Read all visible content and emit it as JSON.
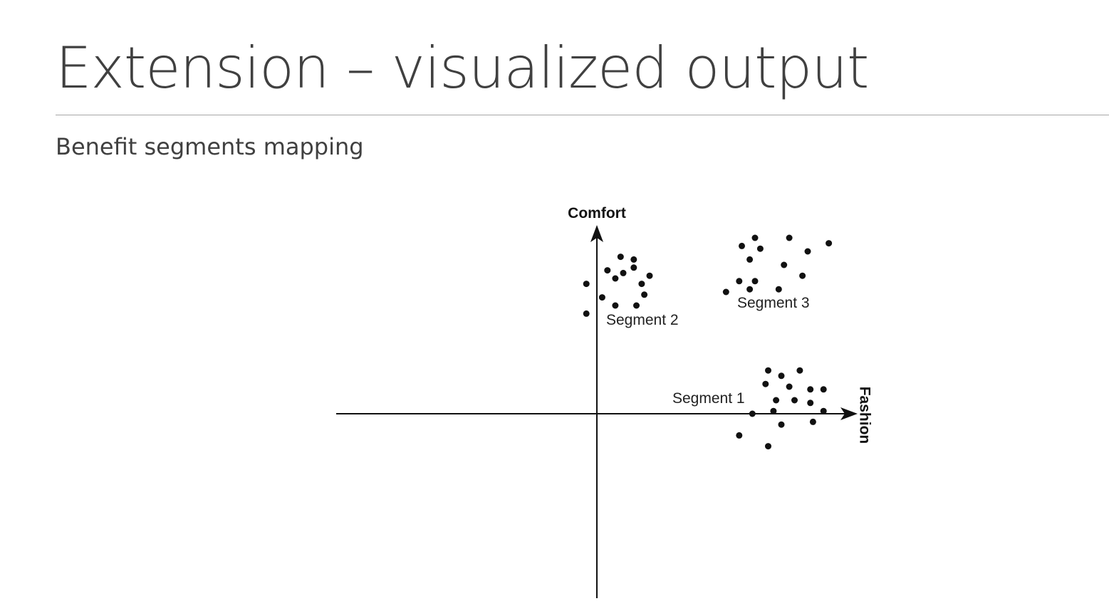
{
  "slide": {
    "title": "Extension – visualized output",
    "subtitle": "Benefit segments mapping"
  },
  "diagram": {
    "axes": {
      "vertical": "Comfort",
      "horizontal": "Fashion"
    },
    "segments": [
      {
        "name": "Segment 1",
        "points": [
          [
            6.5,
            1.6
          ],
          [
            7.0,
            1.4
          ],
          [
            7.7,
            1.6
          ],
          [
            6.4,
            1.1
          ],
          [
            7.3,
            1.0
          ],
          [
            8.1,
            0.9
          ],
          [
            8.6,
            0.9
          ],
          [
            6.8,
            0.5
          ],
          [
            7.5,
            0.5
          ],
          [
            8.1,
            0.4
          ],
          [
            5.9,
            0.0
          ],
          [
            6.7,
            0.1
          ],
          [
            8.6,
            0.1
          ],
          [
            8.2,
            -0.3
          ],
          [
            7.0,
            -0.4
          ],
          [
            5.4,
            -0.8
          ],
          [
            6.5,
            -1.2
          ]
        ]
      },
      {
        "name": "Segment 2",
        "points": [
          [
            0.9,
            5.8
          ],
          [
            1.4,
            5.7
          ],
          [
            1.4,
            5.4
          ],
          [
            0.4,
            5.3
          ],
          [
            1.0,
            5.2
          ],
          [
            0.7,
            5.0
          ],
          [
            2.0,
            5.1
          ],
          [
            1.7,
            4.8
          ],
          [
            -0.4,
            4.8
          ],
          [
            1.8,
            4.4
          ],
          [
            0.2,
            4.3
          ],
          [
            0.7,
            4.0
          ],
          [
            1.5,
            4.0
          ],
          [
            -0.4,
            3.7
          ]
        ]
      },
      {
        "name": "Segment 3",
        "points": [
          [
            6.0,
            6.5
          ],
          [
            5.5,
            6.2
          ],
          [
            6.2,
            6.1
          ],
          [
            7.3,
            6.5
          ],
          [
            8.8,
            6.3
          ],
          [
            8.0,
            6.0
          ],
          [
            5.8,
            5.7
          ],
          [
            7.1,
            5.5
          ],
          [
            7.8,
            5.1
          ],
          [
            5.4,
            4.9
          ],
          [
            6.0,
            4.9
          ],
          [
            6.9,
            4.6
          ],
          [
            5.8,
            4.6
          ],
          [
            4.9,
            4.5
          ]
        ]
      }
    ]
  }
}
